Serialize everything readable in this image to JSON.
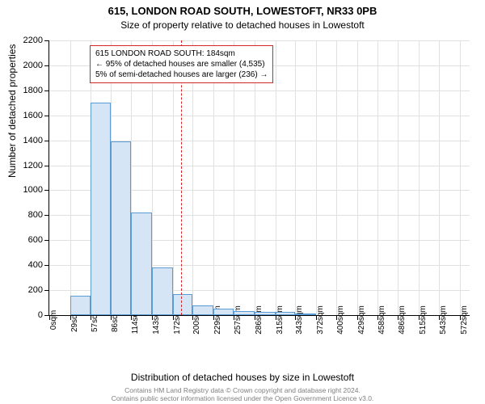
{
  "title": "615, LONDON ROAD SOUTH, LOWESTOFT, NR33 0PB",
  "subtitle": "Size of property relative to detached houses in Lowestoft",
  "y_axis_label": "Number of detached properties",
  "x_axis_label": "Distribution of detached houses by size in Lowestoft",
  "footer1": "Contains HM Land Registry data © Crown copyright and database right 2024.",
  "footer2": "Contains public sector information licensed under the Open Government Licence v3.0.",
  "chart": {
    "type": "histogram",
    "background_color": "#ffffff",
    "grid_color": "#e0e0e0",
    "bar_fill": "#d6e5f5",
    "bar_border": "#5a9bd4",
    "ref_line_color": "#d62728",
    "axis_color": "#000000",
    "ylim": [
      0,
      2200
    ],
    "y_ticks": [
      0,
      200,
      400,
      600,
      800,
      1000,
      1200,
      1400,
      1600,
      1800,
      2000,
      2200
    ],
    "x_ticks": [
      0,
      29,
      57,
      86,
      114,
      143,
      172,
      200,
      229,
      257,
      286,
      315,
      343,
      372,
      400,
      429,
      458,
      486,
      515,
      543,
      572
    ],
    "x_tick_suffix": "sqm",
    "x_max": 586,
    "bars": [
      {
        "x0": 29,
        "x1": 57,
        "y": 155
      },
      {
        "x0": 57,
        "x1": 86,
        "y": 1700
      },
      {
        "x0": 86,
        "x1": 114,
        "y": 1390
      },
      {
        "x0": 114,
        "x1": 143,
        "y": 820
      },
      {
        "x0": 143,
        "x1": 172,
        "y": 380
      },
      {
        "x0": 172,
        "x1": 200,
        "y": 170
      },
      {
        "x0": 200,
        "x1": 229,
        "y": 80
      },
      {
        "x0": 229,
        "x1": 257,
        "y": 50
      },
      {
        "x0": 257,
        "x1": 286,
        "y": 35
      },
      {
        "x0": 286,
        "x1": 315,
        "y": 25
      },
      {
        "x0": 315,
        "x1": 343,
        "y": 25
      },
      {
        "x0": 343,
        "x1": 372,
        "y": 15
      }
    ],
    "ref_line_x": 184,
    "annotation": {
      "line1": "615 LONDON ROAD SOUTH: 184sqm",
      "line2": "← 95% of detached houses are smaller (4,535)",
      "line3": "5% of semi-detached houses are larger (236) →",
      "box_border": "#d62728"
    },
    "title_fontsize": 13,
    "subtitle_fontsize": 12,
    "axis_label_fontsize": 12,
    "tick_fontsize": 11,
    "annotation_fontsize": 10,
    "footer_fontsize": 8.5,
    "footer_color": "#808080"
  }
}
